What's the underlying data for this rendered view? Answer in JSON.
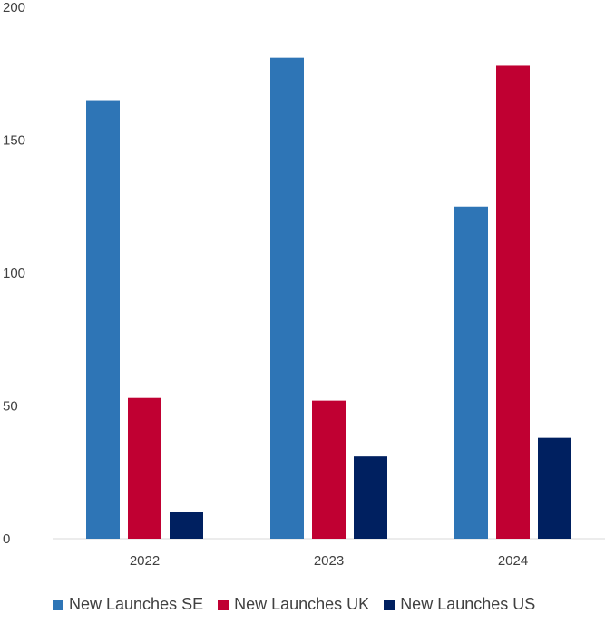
{
  "chart_data": {
    "type": "bar",
    "categories": [
      "2022",
      "2023",
      "2024"
    ],
    "series": [
      {
        "name": "New Launches SE",
        "values": [
          165,
          181,
          125
        ],
        "color": "#2e75b6"
      },
      {
        "name": "New Launches UK",
        "values": [
          53,
          52,
          178
        ],
        "color": "#c00032"
      },
      {
        "name": "New Launches US",
        "values": [
          10,
          31,
          38
        ],
        "color": "#002060"
      }
    ],
    "yticks": [
      "0",
      "50",
      "100",
      "150",
      "200"
    ],
    "ylim": [
      0,
      200
    ],
    "grid": false,
    "legend": "bottom"
  }
}
